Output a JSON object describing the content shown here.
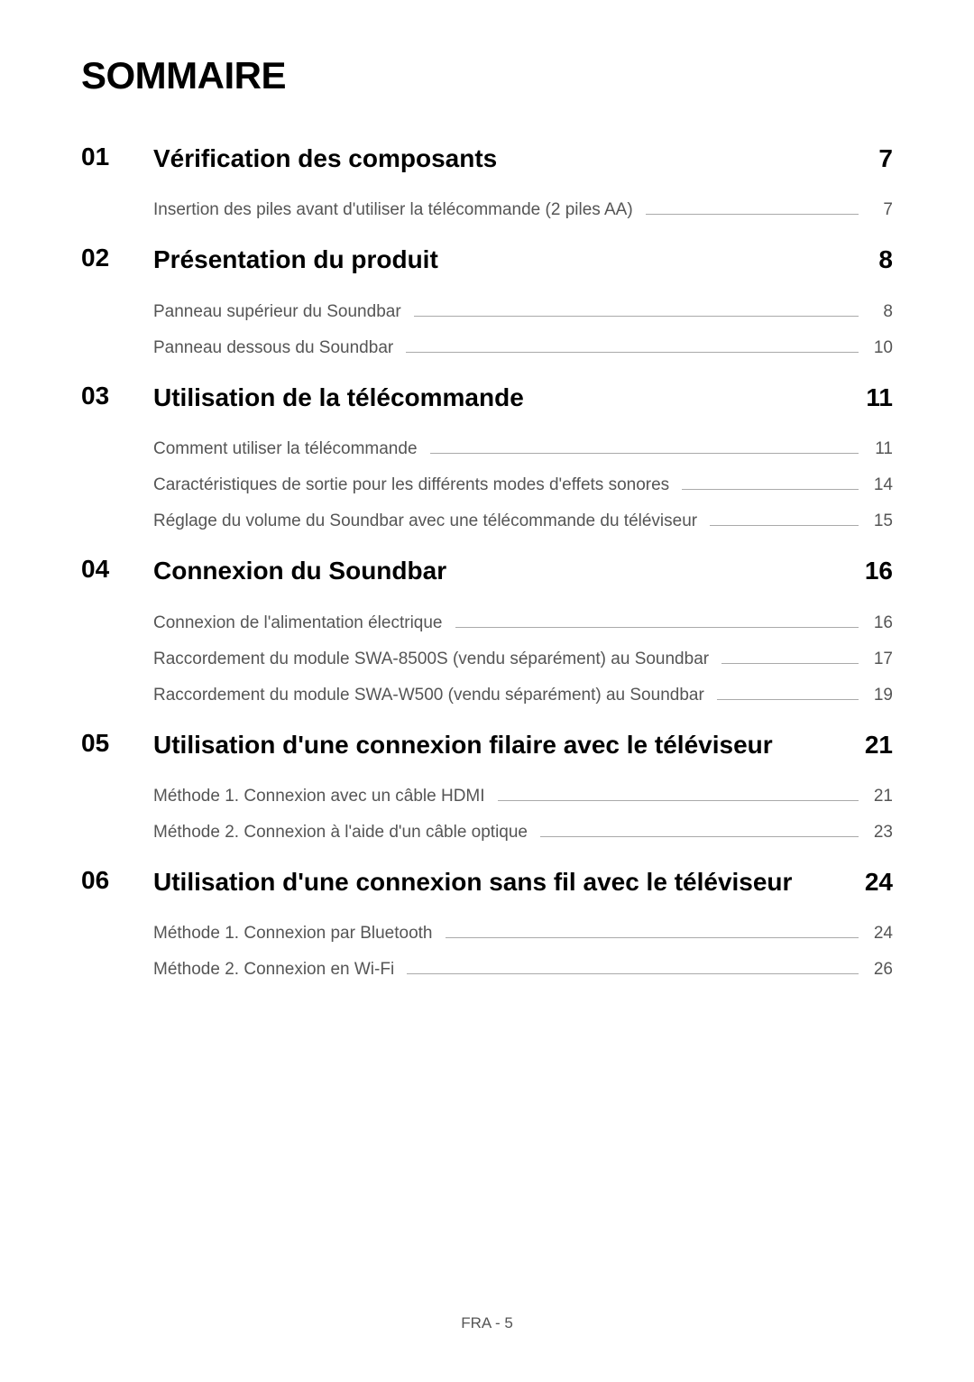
{
  "page_title": "SOMMAIRE",
  "footer": "FRA - 5",
  "sections": [
    {
      "num": "01",
      "title": "Vérification des composants",
      "page": "7",
      "items": [
        {
          "label": "Insertion des piles avant d'utiliser la télécommande (2 piles AA)",
          "page": "7"
        }
      ]
    },
    {
      "num": "02",
      "title": "Présentation du produit",
      "page": "8",
      "items": [
        {
          "label": "Panneau supérieur du Soundbar",
          "page": "8"
        },
        {
          "label": "Panneau dessous du Soundbar",
          "page": "10"
        }
      ]
    },
    {
      "num": "03",
      "title": "Utilisation de la télécommande",
      "page": "11",
      "items": [
        {
          "label": "Comment utiliser la télécommande",
          "page": "11"
        },
        {
          "label": "Caractéristiques de sortie pour les différents modes d'effets sonores",
          "page": "14"
        },
        {
          "label": "Réglage du volume du Soundbar avec une télécommande du téléviseur",
          "page": "15"
        }
      ]
    },
    {
      "num": "04",
      "title": "Connexion du Soundbar",
      "page": "16",
      "items": [
        {
          "label": "Connexion de l'alimentation électrique",
          "page": "16"
        },
        {
          "label": "Raccordement du module SWA-8500S (vendu séparément) au Soundbar",
          "page": "17"
        },
        {
          "label": "Raccordement du module SWA-W500 (vendu séparément) au Soundbar",
          "page": "19"
        }
      ]
    },
    {
      "num": "05",
      "title": "Utilisation d'une connexion filaire avec le téléviseur",
      "page": "21",
      "items": [
        {
          "label": "Méthode 1. Connexion avec un câble HDMI",
          "page": "21"
        },
        {
          "label": "Méthode 2. Connexion à l'aide d'un câble optique",
          "page": "23"
        }
      ]
    },
    {
      "num": "06",
      "title": "Utilisation d'une connexion sans fil avec le téléviseur",
      "page": "24",
      "items": [
        {
          "label": "Méthode 1. Connexion par Bluetooth",
          "page": "24"
        },
        {
          "label": "Méthode 2. Connexion en Wi-Fi",
          "page": "26"
        }
      ]
    }
  ]
}
